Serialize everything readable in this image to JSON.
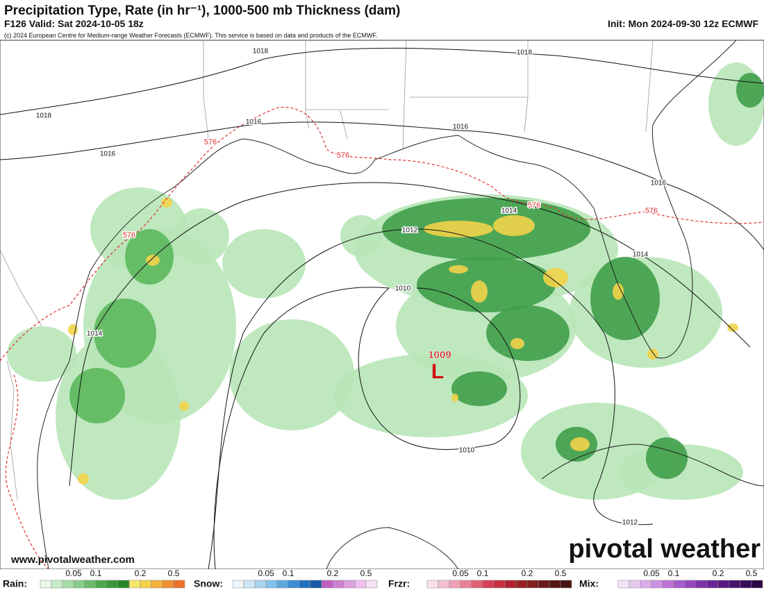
{
  "header": {
    "title": "Precipitation Type, Rate (in hr⁻¹), 1000-500 mb Thickness (dam)",
    "valid": "F126 Valid: Sat 2024-10-05 18z",
    "init": "Init: Mon 2024-09-30 12z ECMWF",
    "copyright": "(c) 2024 European Centre for Medium-range Weather Forecasts (ECMWF). This service is based on data and products of the ECMWF."
  },
  "map": {
    "isobar_labels": [
      "1018",
      "1018",
      "1018",
      "1016",
      "1016",
      "1016",
      "1016",
      "1014",
      "1014",
      "1014",
      "1012",
      "1012",
      "1010",
      "1010"
    ],
    "thickness_labels": [
      "576",
      "576",
      "576",
      "576",
      "576"
    ],
    "low": {
      "pressure": "1009",
      "symbol": "L"
    }
  },
  "footer": {
    "website": "www.pivotalweather.com",
    "logo": "pivotal weather"
  },
  "legend": [
    {
      "label": "Rain:",
      "ticks": [
        "0.05",
        "0.1",
        "0.2",
        "0.5"
      ]
    },
    {
      "label": "Snow:",
      "ticks": [
        "0.05",
        "0.1",
        "0.2",
        "0.5"
      ]
    },
    {
      "label": "Frzr:",
      "ticks": [
        "0.05",
        "0.1",
        "0.2",
        "0.5"
      ]
    },
    {
      "label": "Mix:",
      "ticks": [
        "0.05",
        "0.1",
        "0.2",
        "0.5"
      ]
    }
  ]
}
